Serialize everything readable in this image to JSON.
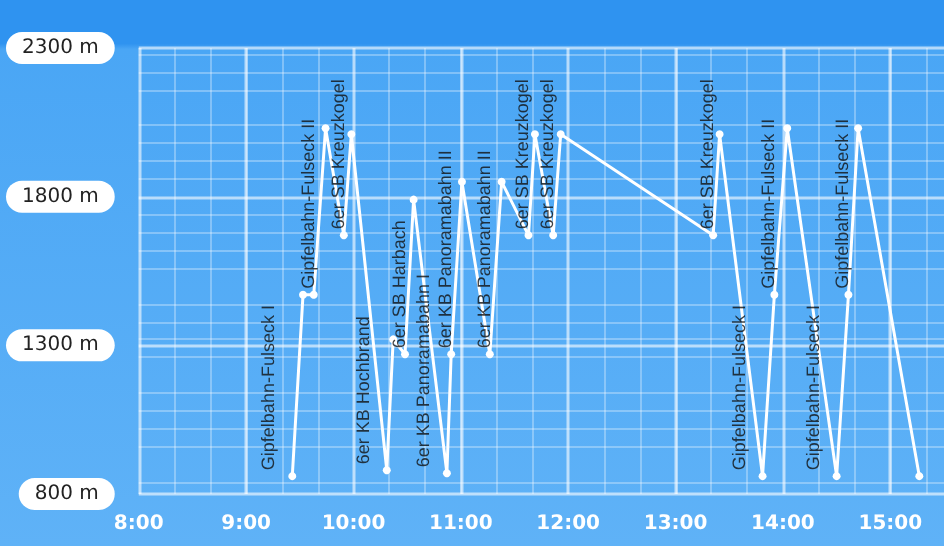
{
  "chart_data": {
    "type": "line",
    "color": "#ffffff",
    "x": [
      9.43,
      9.53,
      9.63,
      9.74,
      9.91,
      9.98,
      10.31,
      10.37,
      10.48,
      10.56,
      10.87,
      10.91,
      11.01,
      11.27,
      11.38,
      11.63,
      11.69,
      11.86,
      11.93,
      13.35,
      13.41,
      13.81,
      13.92,
      14.04,
      14.5,
      14.61,
      14.7,
      15.27
    ],
    "values": [
      860,
      1470,
      1470,
      2030,
      1670,
      2010,
      880,
      1320,
      1270,
      1790,
      870,
      1270,
      1850,
      1270,
      1850,
      1670,
      2010,
      1670,
      2010,
      1670,
      2010,
      860,
      1470,
      2030,
      860,
      1470,
      2030,
      860
    ],
    "xlim": [
      8,
      15.5
    ],
    "xticks": [
      {
        "value": 8,
        "label": "8:00"
      },
      {
        "value": 9,
        "label": "9:00"
      },
      {
        "value": 10,
        "label": "10:00"
      },
      {
        "value": 11,
        "label": "11:00"
      },
      {
        "value": 12,
        "label": "12:00"
      },
      {
        "value": 13,
        "label": "13:00"
      },
      {
        "value": 14,
        "label": "14:00"
      },
      {
        "value": 15,
        "label": "15:00"
      }
    ],
    "ylim": [
      800,
      2300
    ],
    "yticks": [
      {
        "value": 800,
        "label": "800 m"
      },
      {
        "value": 1300,
        "label": "1300 m"
      },
      {
        "value": 1800,
        "label": "1800 m"
      },
      {
        "value": 2300,
        "label": "2300 m"
      }
    ],
    "grid": true,
    "marker": "circle",
    "line_style": "solid",
    "annotations": [
      {
        "text": "Gipfelbahn-Fulseck I",
        "x": 9.43,
        "y": 860
      },
      {
        "text": "Gipfelbahn-Fulseck II",
        "x": 9.63,
        "y": 1470
      },
      {
        "text": "6er SB Kreuzkogel",
        "x": 9.91,
        "y": 1670
      },
      {
        "text": "6er KB Hochbrand",
        "x": 10.31,
        "y": 880
      },
      {
        "text": "6er SB Harbach",
        "x": 10.48,
        "y": 1270
      },
      {
        "text": "6er KB Panoramabahn I",
        "x": 10.87,
        "y": 870
      },
      {
        "text": "6er KB Panoramabahn II",
        "x": 10.91,
        "y": 1270
      },
      {
        "text": "6er KB Panoramabahn II",
        "x": 11.27,
        "y": 1270
      },
      {
        "text": "6er SB Kreuzkogel",
        "x": 11.63,
        "y": 1670
      },
      {
        "text": "6er SB Kreuzkogel",
        "x": 11.86,
        "y": 1670
      },
      {
        "text": "6er SB Kreuzkogel",
        "x": 13.35,
        "y": 1670
      },
      {
        "text": "Gipfelbahn-Fulseck I",
        "x": 13.81,
        "y": 860
      },
      {
        "text": "Gipfelbahn-Fulseck II",
        "x": 13.92,
        "y": 1470
      },
      {
        "text": "Gipfelbahn-Fulseck I",
        "x": 14.5,
        "y": 860
      },
      {
        "text": "Gipfelbahn-Fulseck II",
        "x": 14.61,
        "y": 1470
      }
    ]
  }
}
